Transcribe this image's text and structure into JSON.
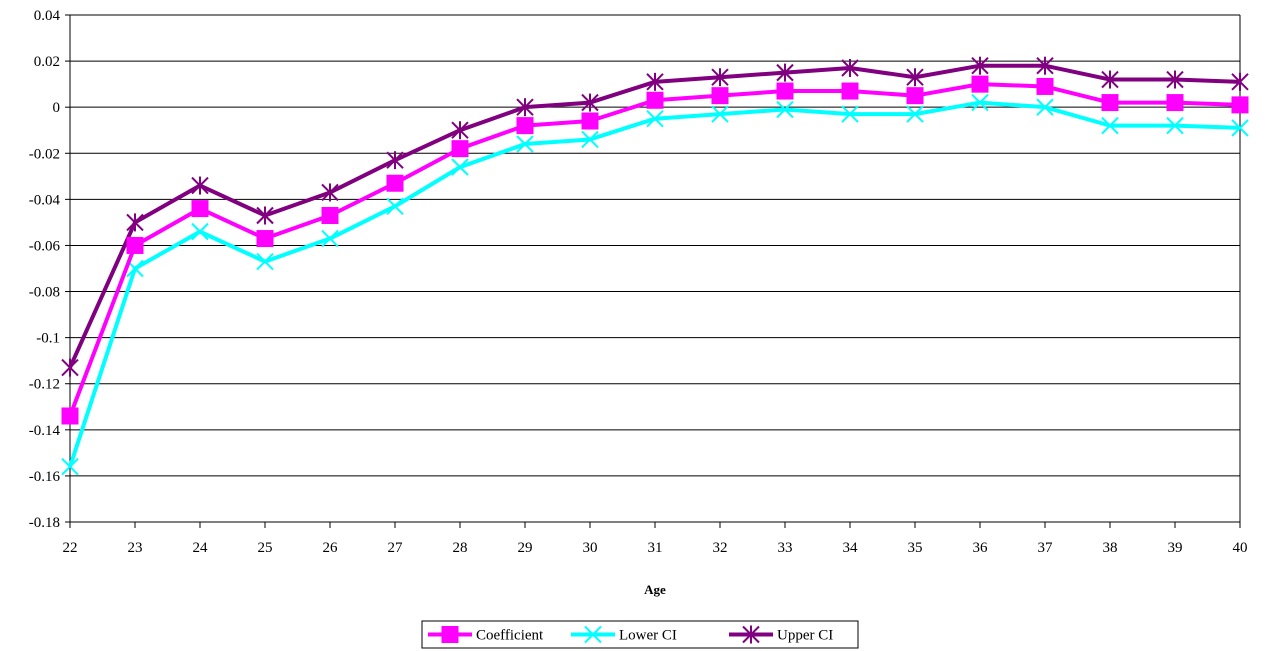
{
  "chart_data": {
    "type": "line",
    "xlabel": "Age",
    "ylabel": "",
    "title": "",
    "x": [
      22,
      23,
      24,
      25,
      26,
      27,
      28,
      29,
      30,
      31,
      32,
      33,
      34,
      35,
      36,
      37,
      38,
      39,
      40
    ],
    "ylim": [
      -0.18,
      0.04
    ],
    "yticks": [
      0.04,
      0.02,
      0,
      -0.02,
      -0.04,
      -0.06,
      -0.08,
      -0.1,
      -0.12,
      -0.14,
      -0.16,
      -0.18
    ],
    "ytick_labels": [
      "0.04",
      "0.02",
      "0",
      "-0.02",
      "-0.04",
      "-0.06",
      "-0.08",
      "-0.1",
      "-0.12",
      "-0.14",
      "-0.16",
      "-0.18"
    ],
    "xtick_labels": [
      "22",
      "23",
      "24",
      "25",
      "26",
      "27",
      "28",
      "29",
      "30",
      "31",
      "32",
      "33",
      "34",
      "35",
      "36",
      "37",
      "38",
      "39",
      "40"
    ],
    "grid": "horizontal",
    "legend_position": "bottom",
    "series": [
      {
        "name": "Coefficient",
        "color": "#ff00ff",
        "marker": "square",
        "values": [
          -0.134,
          -0.06,
          -0.044,
          -0.057,
          -0.047,
          -0.033,
          -0.018,
          -0.008,
          -0.006,
          0.003,
          0.005,
          0.007,
          0.007,
          0.005,
          0.01,
          0.009,
          0.002,
          0.002,
          0.001
        ]
      },
      {
        "name": "Lower CI",
        "color": "#00ffff",
        "marker": "x",
        "values": [
          -0.156,
          -0.07,
          -0.054,
          -0.067,
          -0.057,
          -0.043,
          -0.026,
          -0.016,
          -0.014,
          -0.005,
          -0.003,
          -0.001,
          -0.003,
          -0.003,
          0.002,
          0.0,
          -0.008,
          -0.008,
          -0.009
        ]
      },
      {
        "name": "Upper CI",
        "color": "#800080",
        "marker": "star",
        "values": [
          -0.113,
          -0.05,
          -0.034,
          -0.047,
          -0.037,
          -0.023,
          -0.01,
          0.0,
          0.002,
          0.011,
          0.013,
          0.015,
          0.017,
          0.013,
          0.018,
          0.018,
          0.012,
          0.012,
          0.011
        ]
      }
    ]
  }
}
